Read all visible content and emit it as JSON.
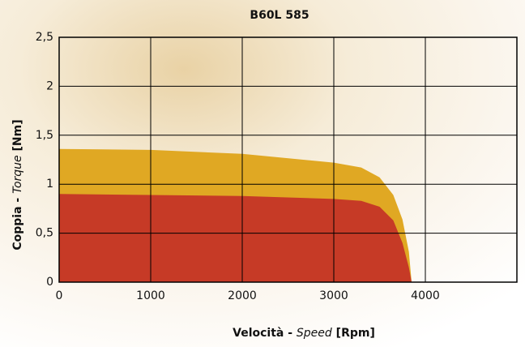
{
  "chart_data": {
    "type": "area",
    "title": "B60L 585",
    "x_label": [
      "Velocità - ",
      "Speed",
      " [Rpm]"
    ],
    "y_label": [
      "Coppia - ",
      "Torque",
      " [Nm]"
    ],
    "x": [
      0,
      1000,
      2000,
      3000,
      3300,
      3500,
      3650,
      3750,
      3820,
      3850
    ],
    "series": [
      {
        "color": "#e0a823",
        "values": [
          1.36,
          1.35,
          1.31,
          1.22,
          1.17,
          1.07,
          0.89,
          0.64,
          0.31,
          0
        ]
      },
      {
        "color": "#c63a26",
        "values": [
          0.9,
          0.89,
          0.88,
          0.85,
          0.83,
          0.77,
          0.63,
          0.4,
          0.15,
          0
        ]
      }
    ],
    "xlim": [
      0,
      5000
    ],
    "xticks": [
      0,
      1000,
      2000,
      3000,
      4000
    ],
    "ylim": [
      0,
      2.5
    ],
    "yticks": [
      0,
      {
        "value": 0.5,
        "label": "0,5"
      },
      1,
      {
        "value": 1.5,
        "label": "1,5"
      },
      2,
      {
        "value": 2.5,
        "label": "2,5"
      }
    ],
    "grid": true
  }
}
